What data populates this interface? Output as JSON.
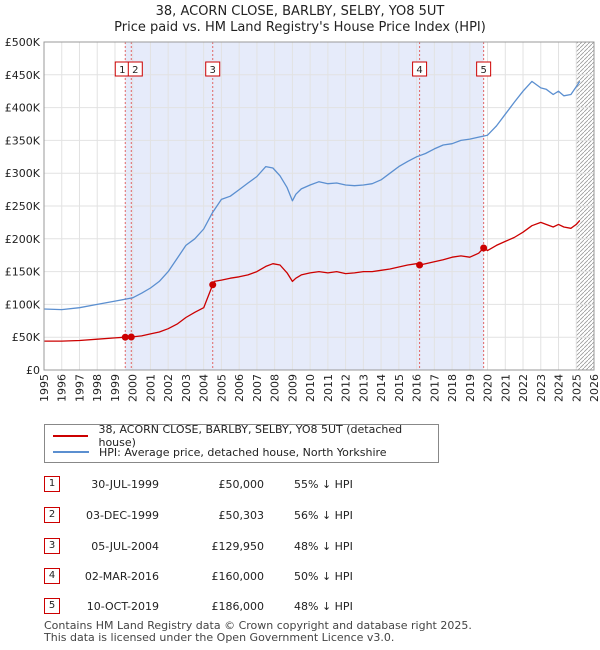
{
  "chart_data": {
    "type": "line",
    "title": "38, ACORN CLOSE, BARLBY, SELBY, YO8 5UT",
    "subtitle": "Price paid vs. HM Land Registry's House Price Index (HPI)",
    "xlim": [
      1995,
      2026
    ],
    "ylim": [
      0,
      500000
    ],
    "x_ticks": [
      1995,
      1996,
      1997,
      1998,
      1999,
      2000,
      2001,
      2002,
      2003,
      2004,
      2005,
      2006,
      2007,
      2008,
      2009,
      2010,
      2011,
      2012,
      2013,
      2014,
      2015,
      2016,
      2017,
      2018,
      2019,
      2020,
      2021,
      2022,
      2023,
      2024,
      2025,
      2026
    ],
    "x_tick_labels": [
      "1995",
      "1996",
      "1997",
      "1998",
      "1999",
      "2000",
      "2001",
      "2002",
      "2003",
      "2004",
      "2005",
      "2006",
      "2007",
      "2008",
      "2009",
      "2010",
      "2011",
      "2012",
      "2013",
      "2014",
      "2015",
      "2016",
      "2017",
      "2018",
      "2019",
      "2020",
      "2021",
      "2022",
      "2023",
      "2024",
      "2025",
      "2026"
    ],
    "y_ticks": [
      0,
      50000,
      100000,
      150000,
      200000,
      250000,
      300000,
      350000,
      400000,
      450000,
      500000
    ],
    "y_tick_labels": [
      "£0",
      "£50K",
      "£100K",
      "£150K",
      "£200K",
      "£250K",
      "£300K",
      "£350K",
      "£400K",
      "£450K",
      "£500K"
    ],
    "shade_start": 1999.58,
    "shade_end": 2019.78,
    "forecast_start": 2025.0,
    "series": [
      {
        "name": "38, ACORN CLOSE, BARLBY, SELBY, YO8 5UT (detached house)",
        "color": "#cc0000",
        "x": [
          1995.0,
          1996.0,
          1997.0,
          1998.0,
          1999.0,
          1999.58,
          1999.92,
          2000.5,
          2001.0,
          2001.5,
          2002.0,
          2002.5,
          2003.0,
          2003.5,
          2004.0,
          2004.51,
          2004.6,
          2005.0,
          2005.5,
          2006.0,
          2006.5,
          2007.0,
          2007.5,
          2007.9,
          2008.3,
          2008.7,
          2009.0,
          2009.2,
          2009.5,
          2010.0,
          2010.5,
          2011.0,
          2011.5,
          2012.0,
          2012.5,
          2013.0,
          2013.5,
          2014.0,
          2014.5,
          2015.0,
          2015.5,
          2016.0,
          2016.17,
          2016.5,
          2017.0,
          2017.5,
          2018.0,
          2018.5,
          2019.0,
          2019.5,
          2019.78,
          2020.0,
          2020.5,
          2021.0,
          2021.5,
          2022.0,
          2022.5,
          2023.0,
          2023.3,
          2023.7,
          2024.0,
          2024.3,
          2024.7,
          2025.0,
          2025.2
        ],
        "y": [
          44000,
          44000,
          45000,
          47000,
          49000,
          50000,
          50303,
          52000,
          55000,
          58000,
          63000,
          70000,
          80000,
          88000,
          95000,
          129950,
          135000,
          137000,
          140000,
          142000,
          145000,
          150000,
          158000,
          162000,
          160000,
          148000,
          135000,
          140000,
          145000,
          148000,
          150000,
          148000,
          150000,
          147000,
          148000,
          150000,
          150000,
          152000,
          154000,
          157000,
          160000,
          162000,
          160000,
          162000,
          165000,
          168000,
          172000,
          174000,
          172000,
          178000,
          186000,
          182000,
          190000,
          196000,
          202000,
          210000,
          220000,
          225000,
          222000,
          218000,
          222000,
          218000,
          216000,
          222000,
          228000
        ]
      },
      {
        "name": "HPI: Average price, detached house, North Yorkshire",
        "color": "#5b8fd0",
        "x": [
          1995.0,
          1996.0,
          1997.0,
          1998.0,
          1999.0,
          2000.0,
          2000.5,
          2001.0,
          2001.5,
          2002.0,
          2002.5,
          2003.0,
          2003.5,
          2004.0,
          2004.5,
          2005.0,
          2005.5,
          2006.0,
          2006.5,
          2007.0,
          2007.5,
          2007.9,
          2008.3,
          2008.7,
          2009.0,
          2009.2,
          2009.5,
          2010.0,
          2010.5,
          2011.0,
          2011.5,
          2012.0,
          2012.5,
          2013.0,
          2013.5,
          2014.0,
          2014.5,
          2015.0,
          2015.5,
          2016.0,
          2016.5,
          2017.0,
          2017.5,
          2018.0,
          2018.5,
          2019.0,
          2019.5,
          2020.0,
          2020.5,
          2021.0,
          2021.5,
          2022.0,
          2022.5,
          2023.0,
          2023.3,
          2023.7,
          2024.0,
          2024.3,
          2024.7,
          2025.0,
          2025.2
        ],
        "y": [
          93000,
          92000,
          95000,
          100000,
          105000,
          110000,
          117000,
          125000,
          135000,
          150000,
          170000,
          190000,
          200000,
          215000,
          240000,
          260000,
          265000,
          275000,
          285000,
          295000,
          310000,
          308000,
          296000,
          278000,
          258000,
          268000,
          276000,
          282000,
          287000,
          284000,
          285000,
          282000,
          281000,
          282000,
          284000,
          290000,
          300000,
          310000,
          318000,
          325000,
          330000,
          337000,
          343000,
          345000,
          350000,
          352000,
          355000,
          358000,
          372000,
          390000,
          408000,
          425000,
          440000,
          430000,
          428000,
          420000,
          425000,
          418000,
          420000,
          432000,
          440000
        ]
      }
    ],
    "sale_markers": [
      {
        "label": "1",
        "x": 1999.58,
        "y": 50000
      },
      {
        "label": "2",
        "x": 1999.92,
        "y": 50303
      },
      {
        "label": "3",
        "x": 2004.51,
        "y": 129950
      },
      {
        "label": "4",
        "x": 2016.17,
        "y": 160000
      },
      {
        "label": "5",
        "x": 2019.78,
        "y": 186000
      }
    ]
  },
  "legend": {
    "property_label": "38, ACORN CLOSE, BARLBY, SELBY, YO8 5UT (detached house)",
    "hpi_label": "HPI: Average price, detached house, North Yorkshire"
  },
  "sales": [
    {
      "num": "1",
      "date": "30-JUL-1999",
      "price": "£50,000",
      "hpi": "55% ↓ HPI"
    },
    {
      "num": "2",
      "date": "03-DEC-1999",
      "price": "£50,303",
      "hpi": "56% ↓ HPI"
    },
    {
      "num": "3",
      "date": "05-JUL-2004",
      "price": "£129,950",
      "hpi": "48% ↓ HPI"
    },
    {
      "num": "4",
      "date": "02-MAR-2016",
      "price": "£160,000",
      "hpi": "50% ↓ HPI"
    },
    {
      "num": "5",
      "date": "10-OCT-2019",
      "price": "£186,000",
      "hpi": "48% ↓ HPI"
    }
  ],
  "footer": {
    "line1": "Contains HM Land Registry data © Crown copyright and database right 2025.",
    "line2": "This data is licensed under the Open Government Licence v3.0."
  }
}
